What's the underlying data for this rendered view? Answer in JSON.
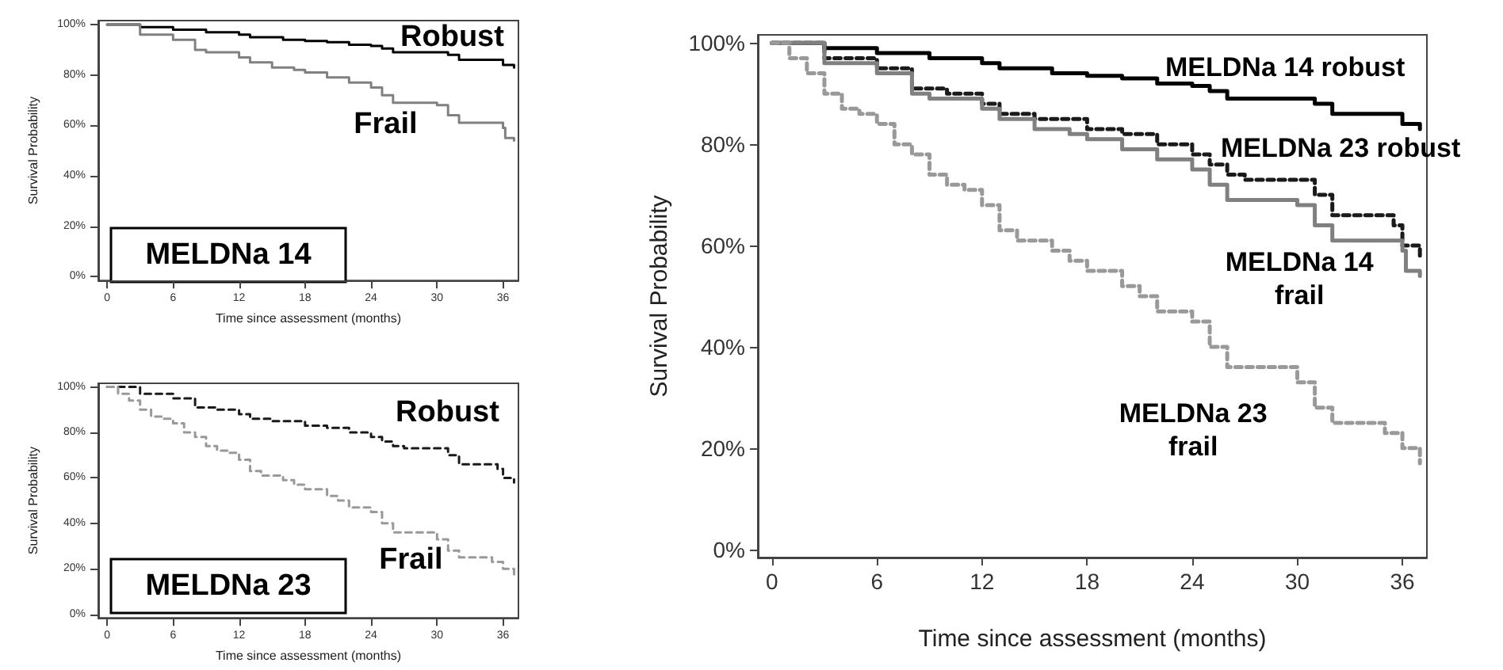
{
  "chart_data": [
    {
      "type": "step",
      "ylabel": "Survival Probability",
      "xlabel": "Time since assessment (months)",
      "annotations": [
        "MELDNa 14"
      ],
      "xlim": [
        -0.8,
        37.4
      ],
      "ylim": [
        -1.6,
        101.6
      ],
      "xticks": [
        0,
        6,
        12,
        18,
        24,
        30,
        36
      ],
      "yticks": [
        {
          "value": 0,
          "label": "0%"
        },
        {
          "value": 20,
          "label": "20%"
        },
        {
          "value": 40,
          "label": "40%"
        },
        {
          "value": 60,
          "label": "60%"
        },
        {
          "value": 80,
          "label": "80%"
        },
        {
          "value": 100,
          "label": "100%"
        }
      ],
      "grid": false,
      "legend": false,
      "marker": "none",
      "series": [
        {
          "name": "Robust",
          "color": "#000000",
          "line_style": "solid",
          "x": [
            0,
            3,
            6,
            9,
            12,
            13,
            16,
            18,
            20,
            22,
            24,
            25,
            26,
            30,
            31,
            32,
            35,
            36,
            37
          ],
          "values": [
            100,
            99,
            98,
            97,
            96,
            95,
            94,
            93.5,
            93,
            92,
            91.5,
            90.5,
            89,
            89,
            88,
            86,
            86,
            84,
            83
          ]
        },
        {
          "name": "Frail",
          "color": "#808080",
          "line_style": "solid",
          "x": [
            0,
            3,
            6,
            8,
            9,
            11,
            12,
            13,
            15,
            17,
            18,
            20,
            22,
            24,
            25,
            26,
            29,
            30,
            31,
            32,
            35,
            36,
            36.2,
            37
          ],
          "values": [
            100,
            96,
            94,
            90,
            89,
            89,
            87,
            85,
            83,
            82,
            81,
            79,
            77,
            75,
            72,
            69,
            69,
            68,
            64,
            61,
            61,
            59,
            55,
            54
          ]
        }
      ]
    },
    {
      "type": "step",
      "ylabel": "Survival Probability",
      "xlabel": "Time since assessment (months)",
      "annotations": [
        "MELDNa 23"
      ],
      "xlim": [
        -0.8,
        37.4
      ],
      "ylim": [
        -1.6,
        101.6
      ],
      "xticks": [
        0,
        6,
        12,
        18,
        24,
        30,
        36
      ],
      "yticks": [
        {
          "value": 0,
          "label": "0%"
        },
        {
          "value": 20,
          "label": "20%"
        },
        {
          "value": 40,
          "label": "40%"
        },
        {
          "value": 60,
          "label": "60%"
        },
        {
          "value": 80,
          "label": "80%"
        },
        {
          "value": 100,
          "label": "100%"
        }
      ],
      "grid": false,
      "legend": false,
      "marker": "none",
      "series": [
        {
          "name": "Robust",
          "color": "#1a1a1a",
          "line_style": "dashed",
          "x": [
            0,
            3,
            6,
            8,
            10,
            11,
            12,
            13,
            15,
            18,
            20,
            22,
            24,
            25,
            26,
            27,
            30,
            31,
            32,
            35,
            35.5,
            36,
            37
          ],
          "values": [
            100,
            97,
            95,
            91,
            90,
            90,
            88,
            86,
            85,
            83,
            82,
            80,
            78,
            76,
            74,
            73,
            73,
            70,
            66,
            66,
            64,
            60,
            58
          ]
        },
        {
          "name": "Frail",
          "color": "#999999",
          "line_style": "dashed",
          "x": [
            0,
            1,
            2,
            3,
            4,
            5,
            6,
            7,
            8,
            9,
            10,
            11,
            12,
            13,
            14,
            16,
            17,
            18,
            19,
            20,
            21,
            22,
            24,
            25,
            26,
            29,
            30,
            31,
            32,
            34,
            35,
            36,
            37
          ],
          "values": [
            100,
            97,
            94,
            90,
            87,
            86,
            84,
            80,
            78,
            74,
            72,
            71,
            68,
            63,
            61,
            59,
            57,
            55,
            55,
            52,
            50,
            47,
            45,
            40,
            36,
            36,
            33,
            28,
            25,
            25,
            23,
            20,
            17
          ]
        }
      ]
    },
    {
      "type": "step",
      "ylabel": "Survival Probability",
      "xlabel": "Time since assessment (months)",
      "xlim": [
        -0.8,
        37.4
      ],
      "ylim": [
        -1.6,
        101.6
      ],
      "xticks": [
        0,
        6,
        12,
        18,
        24,
        30,
        36
      ],
      "yticks": [
        {
          "value": 0,
          "label": "0%"
        },
        {
          "value": 20,
          "label": "20%"
        },
        {
          "value": 40,
          "label": "40%"
        },
        {
          "value": 60,
          "label": "60%"
        },
        {
          "value": 80,
          "label": "80%"
        },
        {
          "value": 100,
          "label": "100%"
        }
      ],
      "grid": false,
      "legend": false,
      "marker": "none",
      "series": [
        {
          "name": "MELDNa 14 robust",
          "color": "#000000",
          "line_style": "solid",
          "x": [
            0,
            3,
            6,
            9,
            12,
            13,
            16,
            18,
            20,
            22,
            24,
            25,
            26,
            30,
            31,
            32,
            35,
            36,
            37
          ],
          "values": [
            100,
            99,
            98,
            97,
            96,
            95,
            94,
            93.5,
            93,
            92,
            91.5,
            90.5,
            89,
            89,
            88,
            86,
            86,
            84,
            83
          ]
        },
        {
          "name": "MELDNa 23 robust",
          "color": "#1a1a1a",
          "line_style": "dashed",
          "x": [
            0,
            3,
            6,
            8,
            10,
            11,
            12,
            13,
            15,
            18,
            20,
            22,
            24,
            25,
            26,
            27,
            30,
            31,
            32,
            35,
            35.5,
            36,
            37
          ],
          "values": [
            100,
            97,
            95,
            91,
            90,
            90,
            88,
            86,
            85,
            83,
            82,
            80,
            78,
            76,
            74,
            73,
            73,
            70,
            66,
            66,
            64,
            60,
            58
          ]
        },
        {
          "name": "MELDNa 14\nfrail",
          "color": "#808080",
          "line_style": "solid",
          "x": [
            0,
            3,
            6,
            8,
            9,
            11,
            12,
            13,
            15,
            17,
            18,
            20,
            22,
            24,
            25,
            26,
            29,
            30,
            31,
            32,
            35,
            36,
            36.2,
            37
          ],
          "values": [
            100,
            96,
            94,
            90,
            89,
            89,
            87,
            85,
            83,
            82,
            81,
            79,
            77,
            75,
            72,
            69,
            69,
            68,
            64,
            61,
            61,
            59,
            55,
            54
          ]
        },
        {
          "name": "MELDNa 23\nfrail",
          "color": "#999999",
          "line_style": "dashed",
          "x": [
            0,
            1,
            2,
            3,
            4,
            5,
            6,
            7,
            8,
            9,
            10,
            11,
            12,
            13,
            14,
            16,
            17,
            18,
            19,
            20,
            21,
            22,
            24,
            25,
            26,
            29,
            30,
            31,
            32,
            34,
            35,
            36,
            37
          ],
          "values": [
            100,
            97,
            94,
            90,
            87,
            86,
            84,
            80,
            78,
            74,
            72,
            71,
            68,
            63,
            61,
            59,
            57,
            55,
            55,
            52,
            50,
            47,
            45,
            40,
            36,
            36,
            33,
            28,
            25,
            25,
            23,
            20,
            17
          ]
        }
      ]
    }
  ]
}
